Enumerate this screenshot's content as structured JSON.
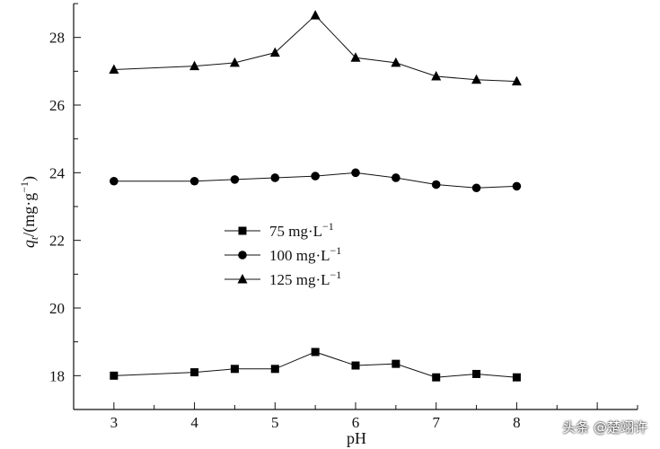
{
  "chart_data": {
    "type": "line",
    "title": "",
    "xlabel": "pH",
    "ylabel": "q_t/(mg·g⁻¹)",
    "ylabel_main": "q",
    "ylabel_sub": "t",
    "ylabel_unit": "/(mg·g",
    "ylabel_sup": "−1",
    "ylabel_close": ")",
    "xlim": [
      2.5,
      9.5
    ],
    "ylim": [
      17,
      29
    ],
    "xticks": [
      3,
      4,
      5,
      6,
      7,
      8
    ],
    "xtick_labels": [
      "3",
      "4",
      "5",
      "6",
      "7",
      "8"
    ],
    "yticks": [
      18,
      20,
      22,
      24,
      26,
      28
    ],
    "ytick_labels": [
      "18",
      "20",
      "22",
      "24",
      "26",
      "28"
    ],
    "legend_position": "center-left",
    "x": [
      3,
      4,
      4.5,
      5,
      5.5,
      6,
      6.5,
      7,
      7.5,
      8
    ],
    "series": [
      {
        "name": "75 mg·L⁻¹",
        "label_main": "75 mg·L",
        "label_sup": "−1",
        "marker": "square",
        "values": [
          18.0,
          18.1,
          18.2,
          18.2,
          18.7,
          18.3,
          18.35,
          17.95,
          18.05,
          17.95
        ]
      },
      {
        "name": "100 mg·L⁻¹",
        "label_main": "100 mg·L",
        "label_sup": "−1",
        "marker": "circle",
        "values": [
          23.75,
          23.75,
          23.8,
          23.85,
          23.9,
          24.0,
          23.85,
          23.65,
          23.55,
          23.6
        ]
      },
      {
        "name": "125 mg·L⁻¹",
        "label_main": "125 mg·L",
        "label_sup": "−1",
        "marker": "triangle",
        "values": [
          27.05,
          27.15,
          27.25,
          27.55,
          28.65,
          27.4,
          27.25,
          26.85,
          26.75,
          26.7
        ]
      }
    ]
  },
  "watermark": "头条 @楚翊许"
}
